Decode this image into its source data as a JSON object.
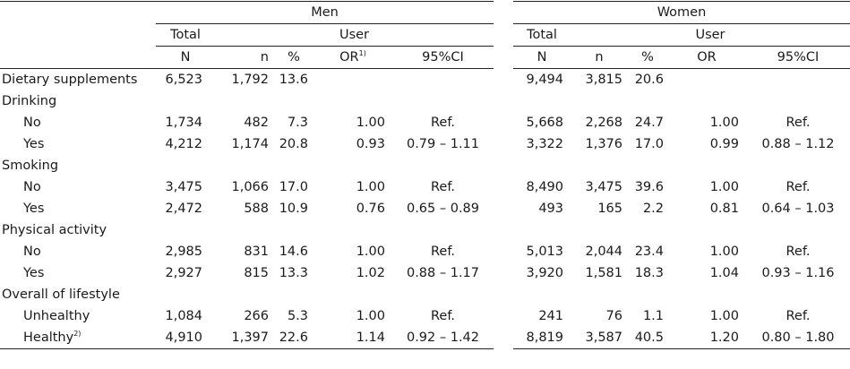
{
  "header": {
    "men": "Men",
    "women": "Women",
    "total": "Total",
    "user": "User",
    "cols": {
      "N": "N",
      "n": "n",
      "pct": "%",
      "or_men": "OR",
      "or_men_sup": "1)",
      "ci": "95%CI",
      "or_women": "OR"
    }
  },
  "rows": [
    {
      "type": "data",
      "label": "Dietary supplements",
      "men": [
        "6,523",
        "1,792",
        "13.6",
        "",
        ""
      ],
      "women": [
        "9,494",
        "3,815",
        "20.6",
        "",
        ""
      ]
    },
    {
      "type": "cat",
      "label": "Drinking"
    },
    {
      "type": "sub",
      "label": "No",
      "men": [
        "1,734",
        "482",
        "7.3",
        "1.00",
        "Ref."
      ],
      "women": [
        "5,668",
        "2,268",
        "24.7",
        "1.00",
        "Ref."
      ]
    },
    {
      "type": "sub",
      "label": "Yes",
      "men": [
        "4,212",
        "1,174",
        "20.8",
        "0.93",
        "0.79 – 1.11"
      ],
      "women": [
        "3,322",
        "1,376",
        "17.0",
        "0.99",
        "0.88 – 1.12"
      ]
    },
    {
      "type": "cat",
      "label": "Smoking"
    },
    {
      "type": "sub",
      "label": "No",
      "men": [
        "3,475",
        "1,066",
        "17.0",
        "1.00",
        "Ref."
      ],
      "women": [
        "8,490",
        "3,475",
        "39.6",
        "1.00",
        "Ref."
      ]
    },
    {
      "type": "sub",
      "label": "Yes",
      "men": [
        "2,472",
        "588",
        "10.9",
        "0.76",
        "0.65 – 0.89"
      ],
      "women": [
        "493",
        "165",
        "2.2",
        "0.81",
        "0.64 – 1.03"
      ]
    },
    {
      "type": "cat",
      "label": "Physical activity"
    },
    {
      "type": "sub",
      "label": "No",
      "men": [
        "2,985",
        "831",
        "14.6",
        "1.00",
        "Ref."
      ],
      "women": [
        "5,013",
        "2,044",
        "23.4",
        "1.00",
        "Ref."
      ]
    },
    {
      "type": "sub",
      "label": "Yes",
      "men": [
        "2,927",
        "815",
        "13.3",
        "1.02",
        "0.88 – 1.17"
      ],
      "women": [
        "3,920",
        "1,581",
        "18.3",
        "1.04",
        "0.93 – 1.16"
      ]
    },
    {
      "type": "cat",
      "label": "Overall of lifestyle"
    },
    {
      "type": "sub",
      "label": "Unhealthy",
      "men": [
        "1,084",
        "266",
        "5.3",
        "1.00",
        "Ref."
      ],
      "women": [
        "241",
        "76",
        "1.1",
        "1.00",
        "Ref."
      ]
    },
    {
      "type": "sub",
      "label": "Healthy",
      "label_sup": "2)",
      "men": [
        "4,910",
        "1,397",
        "22.6",
        "1.14",
        "0.92 – 1.42"
      ],
      "women": [
        "8,819",
        "3,587",
        "40.5",
        "1.20",
        "0.80 – 1.80"
      ]
    }
  ]
}
